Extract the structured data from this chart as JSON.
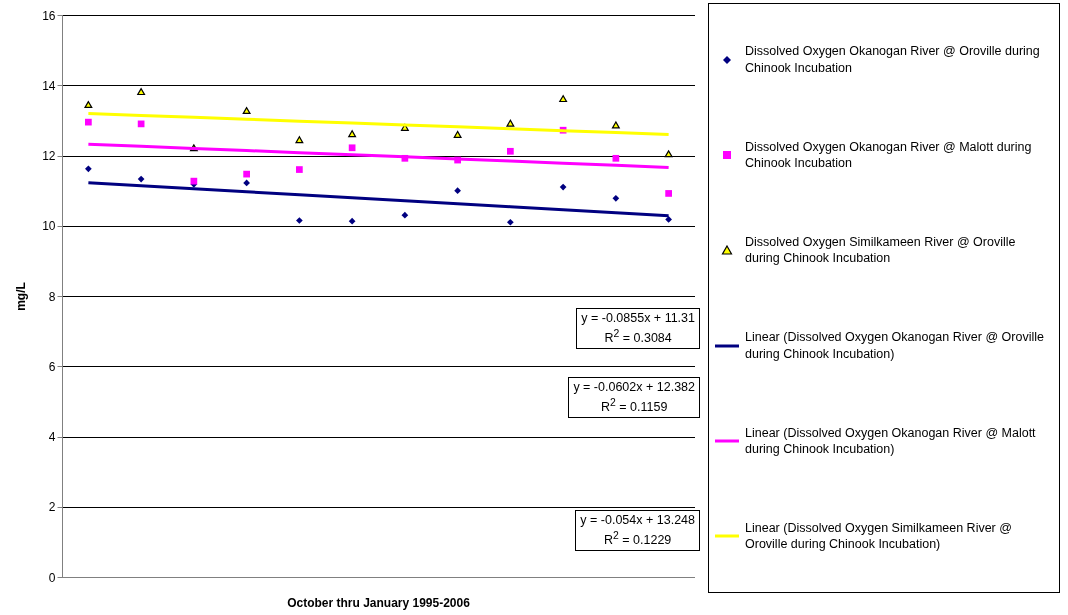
{
  "chart_data": {
    "type": "scatter",
    "xlabel": "October thru January 1995-2006",
    "ylabel": "mg/L",
    "categories": [
      null,
      null,
      null,
      null,
      null,
      null,
      null,
      null,
      null,
      null,
      null,
      null
    ],
    "ylim": [
      0,
      16
    ],
    "yticks": [
      0,
      2,
      4,
      6,
      8,
      10,
      12,
      14,
      16
    ],
    "grid": "y",
    "tick_labels": "y",
    "legend": "right",
    "series": [
      {
        "name": "Dissolved Oxygen Okanogan River @ Oroville during Chinook Incubation",
        "color": "#000080",
        "marker": "diamond",
        "values": [
          11.62,
          11.33,
          11.18,
          11.22,
          10.15,
          10.13,
          10.3,
          11.0,
          10.1,
          11.1,
          10.78,
          10.18
        ]
      },
      {
        "name": "Dissolved Oxygen Okanogan River @ Malott during Chinook Incubation",
        "color": "#ff00ff",
        "marker": "square",
        "values": [
          12.95,
          12.9,
          11.27,
          11.47,
          11.6,
          12.22,
          11.92,
          11.87,
          12.12,
          12.72,
          11.92,
          10.92
        ]
      },
      {
        "name": "Dissolved Oxygen Similkameen River @ Oroville during Chinook Incubation",
        "color": "#ffff00",
        "marker": "triangle",
        "values": [
          13.45,
          13.82,
          12.22,
          13.28,
          12.45,
          12.62,
          12.8,
          12.6,
          12.92,
          13.62,
          12.87,
          12.05
        ]
      },
      {
        "name": "Linear (Dissolved Oxygen Okanogan River @ Oroville during Chinook Incubation)",
        "type": "line",
        "color": "#000080",
        "marker": "none",
        "line_style": "solid",
        "values": [
          11.225,
          11.139,
          11.054,
          10.968,
          10.883,
          10.797,
          10.712,
          10.626,
          10.541,
          10.455,
          10.37,
          10.284
        ]
      },
      {
        "name": "Linear (Dissolved Oxygen Okanogan River @ Malott during Chinook Incubation)",
        "type": "line",
        "color": "#ff00ff",
        "marker": "none",
        "line_style": "solid",
        "values": [
          12.322,
          12.262,
          12.201,
          12.141,
          12.081,
          12.021,
          11.961,
          11.9,
          11.84,
          11.78,
          11.72,
          11.66
        ]
      },
      {
        "name": "Linear (Dissolved Oxygen Similkameen River @  Oroville during Chinook Incubation)",
        "type": "line",
        "color": "#ffff00",
        "marker": "none",
        "line_style": "solid",
        "values": [
          13.194,
          13.14,
          13.086,
          13.032,
          12.978,
          12.924,
          12.87,
          12.816,
          12.762,
          12.708,
          12.654,
          12.6
        ]
      }
    ],
    "annotations": [
      "y = -0.0855x + 11.31",
      "R$^{2}$ = 0.3084",
      "y = -0.0602x + 12.382",
      "R$^{2}$ = 0.1159",
      "y = -0.054x + 13.248",
      "R$^{2}$ = 0.1229"
    ]
  }
}
